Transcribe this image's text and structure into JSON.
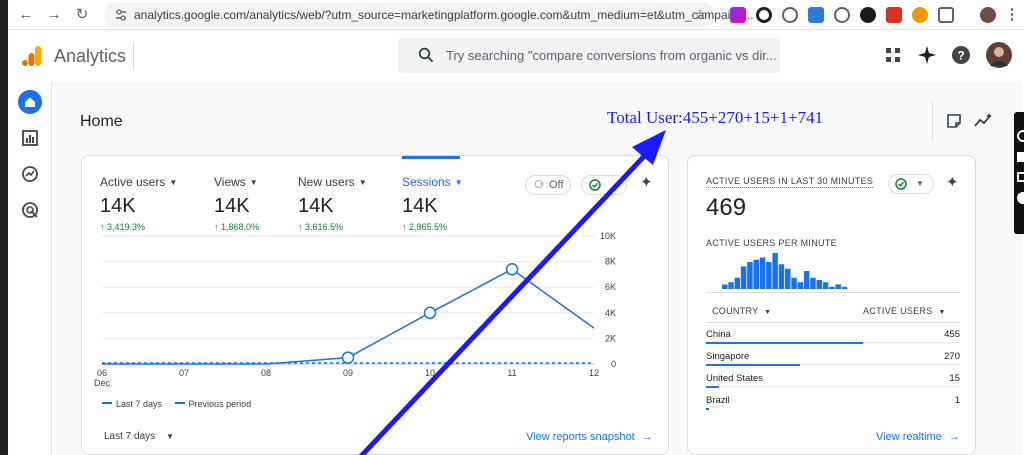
{
  "browser": {
    "url": "analytics.google.com/analytics/web/?utm_source=marketingplatform.google.com&utm_medium=et&utm_campaign..."
  },
  "header": {
    "app_title": "Analytics",
    "search_placeholder": "Try searching \"compare conversions from organic vs dir..."
  },
  "page": {
    "title": "Home"
  },
  "annotation": {
    "text": "Total User:455+270+15+1+741"
  },
  "overview": {
    "metrics": [
      {
        "label": "Active users",
        "value": "14K",
        "change": "3,419.3%"
      },
      {
        "label": "Views",
        "value": "14K",
        "change": "1,868.0%"
      },
      {
        "label": "New users",
        "value": "14K",
        "change": "3,616.5%"
      },
      {
        "label": "Sessions",
        "value": "14K",
        "change": "2,865.5%"
      }
    ],
    "compare_toggle": "Off",
    "legend_current": "Last 7 days",
    "legend_previous": "Previous period",
    "date_range": "Last 7 days",
    "link": "View reports snapshot"
  },
  "chart_data": {
    "type": "line",
    "x": [
      "06 Dec",
      "07",
      "08",
      "09",
      "10",
      "11",
      "12"
    ],
    "x_ticks": [
      "06",
      "07",
      "08",
      "09",
      "10",
      "11",
      "12"
    ],
    "x_sub": "Dec",
    "y_ticks": [
      "10K",
      "8K",
      "6K",
      "4K",
      "2K",
      "0"
    ],
    "ylim": [
      0,
      10000
    ],
    "series": [
      {
        "name": "Last 7 days",
        "values": [
          0,
          0,
          0,
          500,
          4000,
          7400,
          2800
        ]
      },
      {
        "name": "Previous period",
        "values": [
          0,
          0,
          0,
          0,
          0,
          0,
          0
        ]
      }
    ],
    "accent": "#1a73e8"
  },
  "realtime": {
    "title": "ACTIVE USERS IN LAST 30 MINUTES",
    "count": "469",
    "per_minute_label": "ACTIVE USERS PER MINUTE",
    "per_minute": [
      2,
      3,
      5,
      10,
      12,
      13,
      14,
      12,
      16,
      11,
      9,
      5,
      3,
      8,
      5,
      4,
      3,
      1,
      2,
      1
    ],
    "col_country": "COUNTRY",
    "col_users": "ACTIVE USERS",
    "rows": [
      {
        "country": "China",
        "users": "455",
        "share": 0.62
      },
      {
        "country": "Singapore",
        "users": "270",
        "share": 0.37
      },
      {
        "country": "United States",
        "users": "15",
        "share": 0.05
      },
      {
        "country": "Brazil",
        "users": "1",
        "share": 0.01
      }
    ],
    "link": "View realtime"
  }
}
